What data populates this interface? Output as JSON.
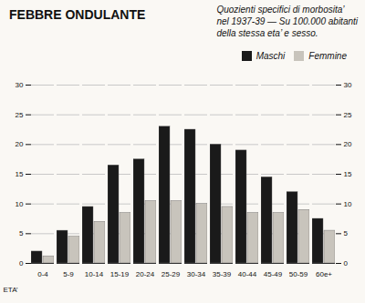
{
  "chart_data": {
    "type": "bar",
    "title": "FEBBRE ONDULANTE",
    "subtitle": "Quozienti specifici di morbosita’\nnel 1937-39 — Su 100.000 abitanti\ndella stessa eta’ e sesso.",
    "xlabel": "ETA’",
    "categories": [
      "0-4",
      "5-9",
      "10-14",
      "15-19",
      "20-24",
      "25-29",
      "30-34",
      "35-39",
      "40-44",
      "45-49",
      "50-59",
      "60e+"
    ],
    "series": [
      {
        "name": "Maschi",
        "color": "#1a1a1a",
        "values": [
          2.0,
          5.5,
          9.5,
          16.5,
          17.5,
          23.0,
          22.5,
          20.0,
          19.0,
          14.5,
          12.0,
          7.5
        ]
      },
      {
        "name": "Femmine",
        "color": "#c8c4bc",
        "values": [
          1.2,
          4.5,
          7.0,
          8.5,
          10.5,
          10.5,
          10.0,
          9.5,
          8.5,
          8.5,
          9.0,
          5.5
        ]
      }
    ],
    "ylim": [
      0,
      30
    ],
    "yticks": [
      0,
      5,
      10,
      15,
      20,
      25,
      30
    ],
    "y2lim": [
      0,
      30
    ],
    "y2ticks": [
      0,
      5,
      10,
      15,
      20,
      25,
      30
    ],
    "grid": true,
    "legend": "upper right"
  }
}
